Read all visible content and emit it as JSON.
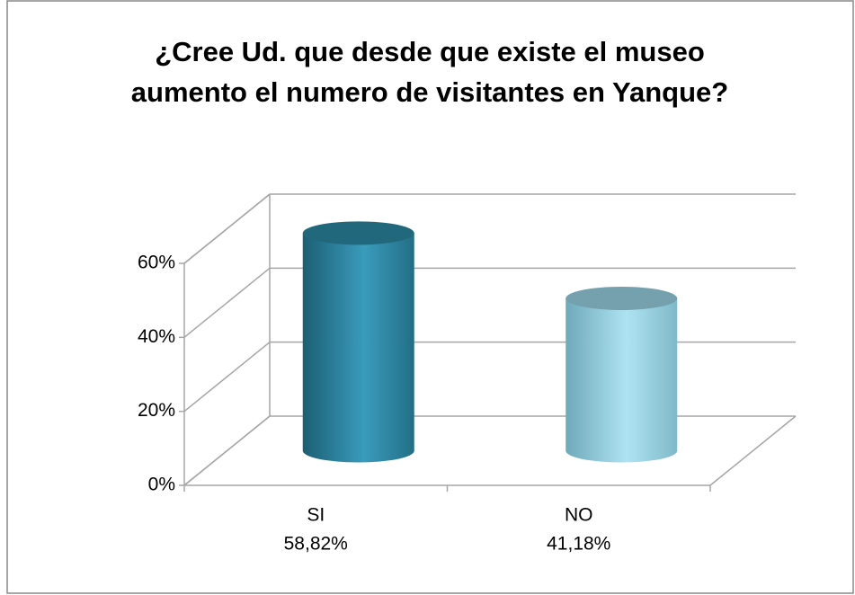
{
  "chart_data": {
    "type": "bar3d",
    "title": [
      "¿Cree Ud. que desde que existe el museo",
      "aumento el numero de visitantes en Yanque?"
    ],
    "categories": [
      "SI",
      "NO"
    ],
    "values": [
      58.82,
      41.18
    ],
    "value_labels": [
      "58,82%",
      "41,18%"
    ],
    "colors": [
      "#2e8aa6",
      "#9ad6e6"
    ],
    "ylim": [
      0,
      60
    ],
    "yticks": [
      {
        "value": 0,
        "label": "0%"
      },
      {
        "value": 20,
        "label": "20%"
      },
      {
        "value": 40,
        "label": "40%"
      },
      {
        "value": 60,
        "label": "60%"
      }
    ],
    "grid": true
  }
}
